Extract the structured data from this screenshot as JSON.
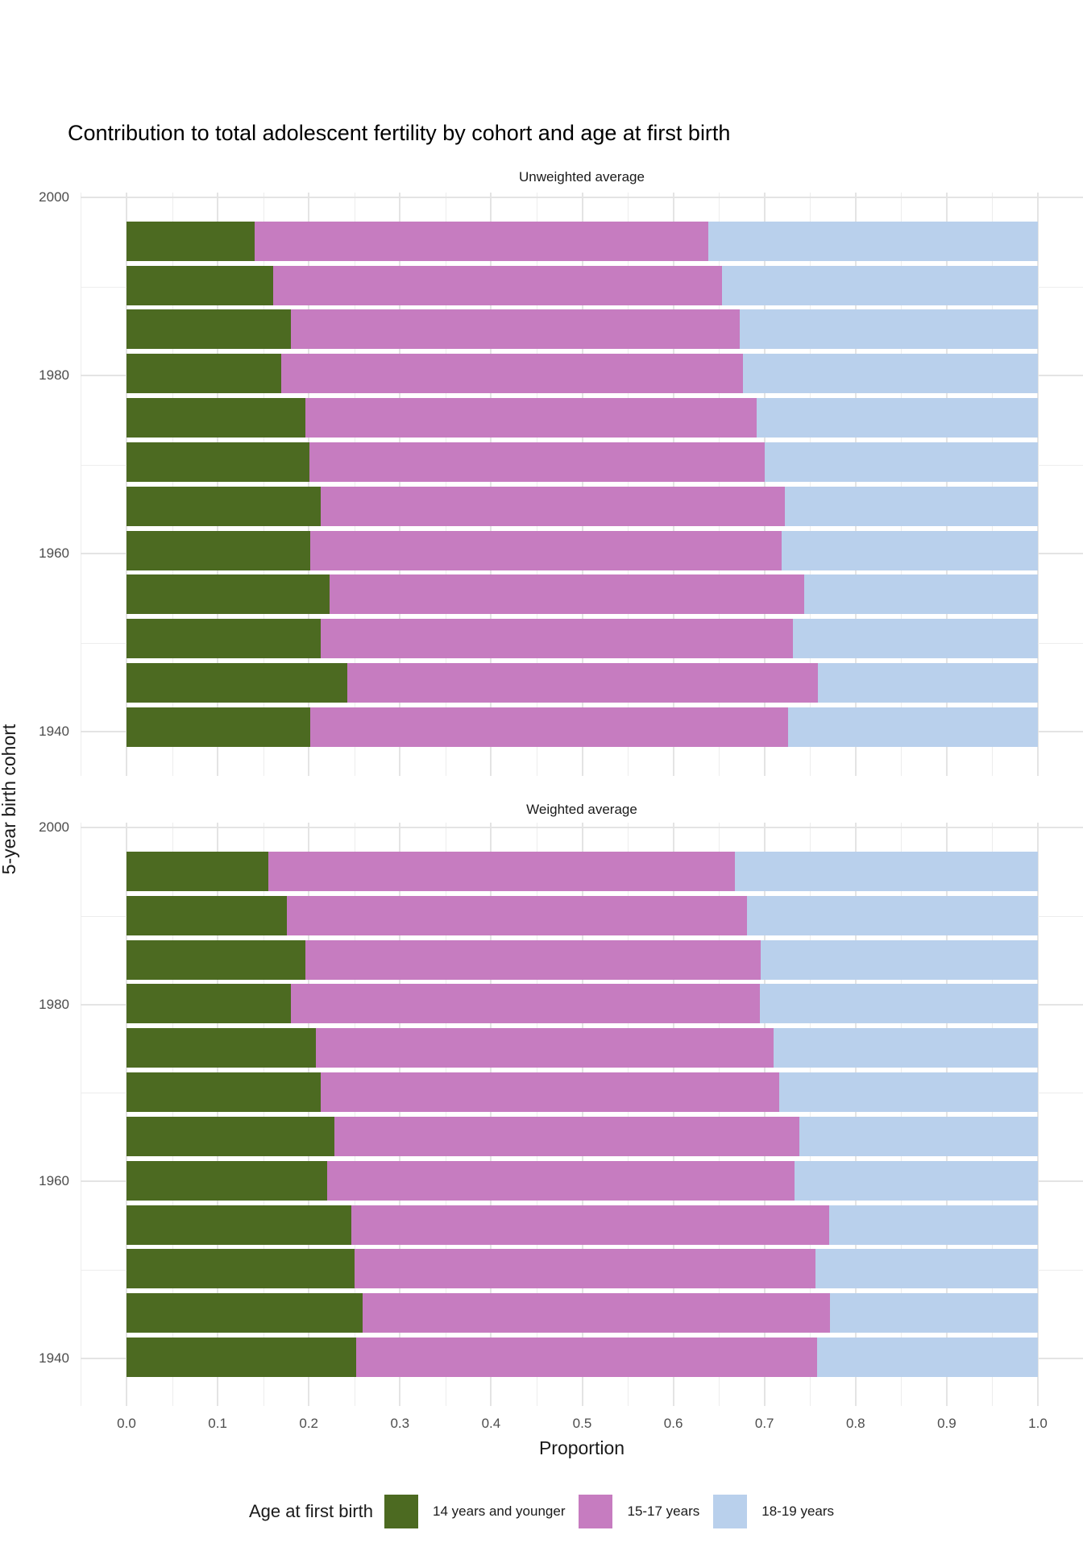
{
  "title": "Contribution to total adolescent fertility by cohort and age at first birth",
  "axes": {
    "x_title": "Proportion",
    "y_title": "5-year birth cohort",
    "x_tick_labels": [
      "0.0",
      "0.1",
      "0.2",
      "0.3",
      "0.4",
      "0.5",
      "0.6",
      "0.7",
      "0.8",
      "0.9",
      "1.0"
    ],
    "y_tick_labels": [
      "2000",
      "1980",
      "1960",
      "1940"
    ]
  },
  "legend": {
    "title": "Age at first birth",
    "items": [
      {
        "label": "14 years and younger",
        "color": "#4c6a21"
      },
      {
        "label": "15-17 years",
        "color": "#c67cc0"
      },
      {
        "label": "18-19 years",
        "color": "#b9d0ec"
      }
    ]
  },
  "colors": {
    "background": "#ffffff",
    "grid_major": "#e4e4e4",
    "grid_minor": "#ededed",
    "tick_text": "#4d4d4d",
    "title_text": "#000000"
  },
  "chart_data": {
    "type": "bar",
    "orientation": "horizontal",
    "stacked": true,
    "x_range": [
      0.0,
      1.0
    ],
    "grid": "on",
    "legend_position": "bottom",
    "series_names": [
      "14 years and younger",
      "15-17 years",
      "18-19 years"
    ],
    "row_order": "top to bottom, 5-year birth cohorts 1995 down to 1940",
    "panels": [
      {
        "title": "Unweighted average",
        "rows": [
          {
            "cohort": "1995",
            "values": [
              0.141,
              0.497,
              0.362
            ]
          },
          {
            "cohort": "1990",
            "values": [
              0.161,
              0.492,
              0.347
            ]
          },
          {
            "cohort": "1985",
            "values": [
              0.18,
              0.493,
              0.327
            ]
          },
          {
            "cohort": "1980",
            "values": [
              0.17,
              0.506,
              0.324
            ]
          },
          {
            "cohort": "1975",
            "values": [
              0.196,
              0.495,
              0.309
            ]
          },
          {
            "cohort": "1970",
            "values": [
              0.201,
              0.499,
              0.3
            ]
          },
          {
            "cohort": "1965",
            "values": [
              0.213,
              0.509,
              0.278
            ]
          },
          {
            "cohort": "1960",
            "values": [
              0.202,
              0.517,
              0.281
            ]
          },
          {
            "cohort": "1955",
            "values": [
              0.223,
              0.521,
              0.256
            ]
          },
          {
            "cohort": "1950",
            "values": [
              0.213,
              0.518,
              0.269
            ]
          },
          {
            "cohort": "1945",
            "values": [
              0.242,
              0.517,
              0.241
            ]
          },
          {
            "cohort": "1940",
            "values": [
              0.202,
              0.524,
              0.274
            ]
          }
        ]
      },
      {
        "title": "Weighted average",
        "rows": [
          {
            "cohort": "1995",
            "values": [
              0.156,
              0.512,
              0.332
            ]
          },
          {
            "cohort": "1990",
            "values": [
              0.176,
              0.505,
              0.319
            ]
          },
          {
            "cohort": "1985",
            "values": [
              0.196,
              0.5,
              0.304
            ]
          },
          {
            "cohort": "1980",
            "values": [
              0.18,
              0.515,
              0.305
            ]
          },
          {
            "cohort": "1975",
            "values": [
              0.208,
              0.502,
              0.29
            ]
          },
          {
            "cohort": "1970",
            "values": [
              0.213,
              0.503,
              0.284
            ]
          },
          {
            "cohort": "1965",
            "values": [
              0.228,
              0.51,
              0.262
            ]
          },
          {
            "cohort": "1960",
            "values": [
              0.22,
              0.513,
              0.267
            ]
          },
          {
            "cohort": "1955",
            "values": [
              0.247,
              0.524,
              0.229
            ]
          },
          {
            "cohort": "1950",
            "values": [
              0.25,
              0.506,
              0.244
            ]
          },
          {
            "cohort": "1945",
            "values": [
              0.259,
              0.513,
              0.228
            ]
          },
          {
            "cohort": "1940",
            "values": [
              0.252,
              0.506,
              0.242
            ]
          }
        ]
      }
    ]
  }
}
